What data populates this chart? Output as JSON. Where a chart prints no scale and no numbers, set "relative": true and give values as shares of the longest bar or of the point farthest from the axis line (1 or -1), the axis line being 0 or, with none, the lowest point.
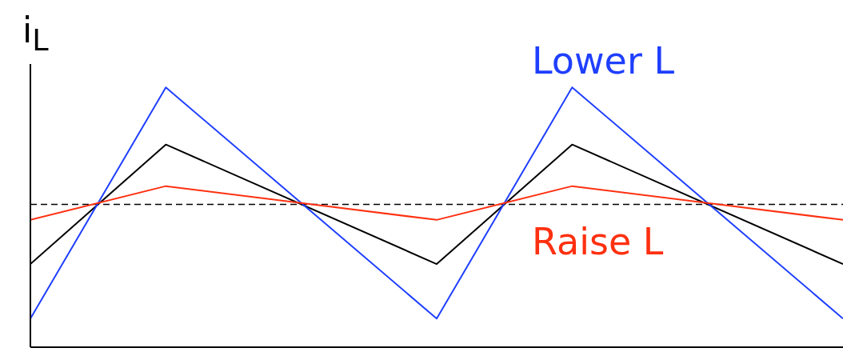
{
  "chart_data": {
    "type": "line",
    "relative": true,
    "ylabel": "i$_{L}$",
    "categories": [
      null,
      null,
      null,
      null,
      null,
      null,
      null,
      null,
      null,
      null,
      null,
      null,
      null
    ],
    "series": [
      {
        "color": "#000000",
        "values": [
          0.32,
          null,
          0.78,
          null,
          null,
          null,
          0.32,
          null,
          0.78,
          null,
          null,
          null,
          0.32
        ]
      },
      {
        "name": "Lower L",
        "color": "#1f3fff",
        "values": [
          0.11,
          null,
          1,
          null,
          null,
          null,
          0.11,
          null,
          1,
          null,
          null,
          null,
          0.11
        ]
      },
      {
        "name": "Raise L",
        "color": "#ff3010",
        "values": [
          0.49,
          null,
          0.62,
          null,
          null,
          null,
          0.49,
          null,
          0.62,
          null,
          null,
          null,
          0.49
        ]
      }
    ],
    "ref_lines": [
      {
        "axis": "y",
        "value": 0.55,
        "line_style": "dashed",
        "color": "#000000"
      }
    ],
    "legend": false,
    "grid": false,
    "marker": "none",
    "line_style": "solid"
  }
}
